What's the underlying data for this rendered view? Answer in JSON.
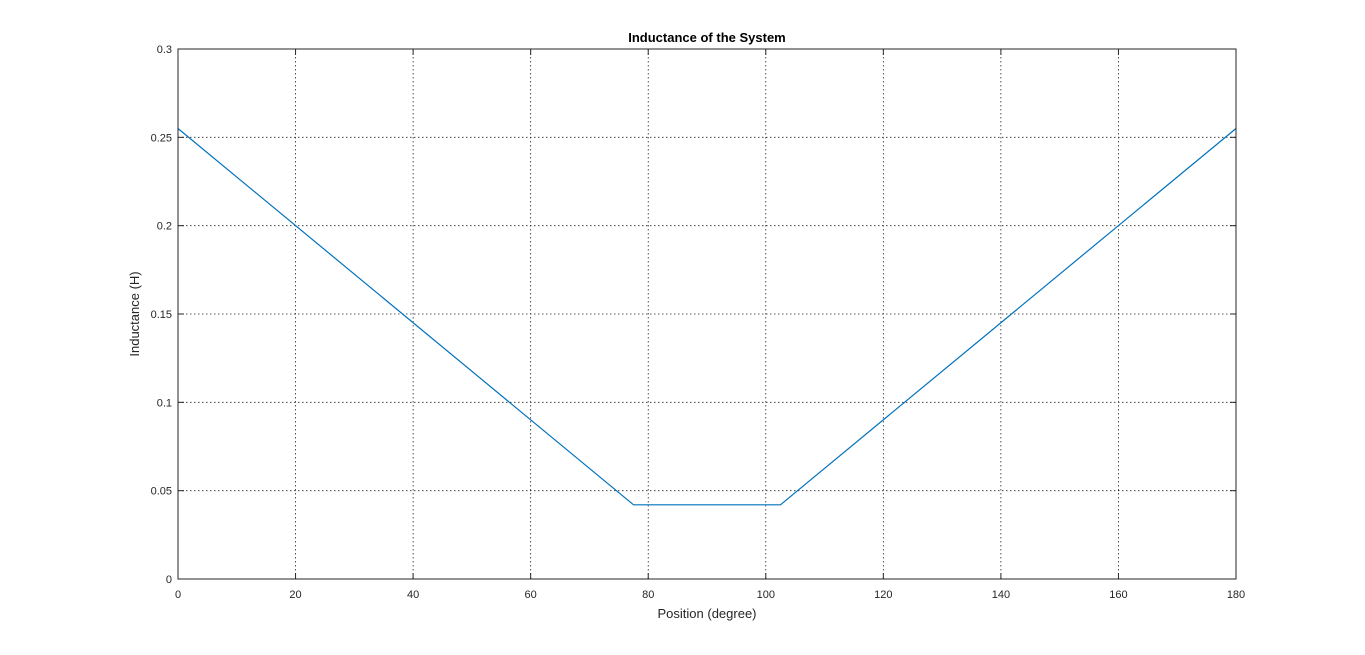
{
  "chart_data": {
    "type": "line",
    "title": "Inductance of the System",
    "xlabel": "Position (degree)",
    "ylabel": "Inductance (H)",
    "xlim": [
      0,
      180
    ],
    "ylim": [
      0,
      0.3
    ],
    "xticks": [
      0,
      20,
      40,
      60,
      80,
      100,
      120,
      140,
      160,
      180
    ],
    "yticks": [
      0,
      0.05,
      0.1,
      0.15,
      0.2,
      0.25,
      0.3
    ],
    "xtick_labels": [
      "0",
      "20",
      "40",
      "60",
      "80",
      "100",
      "120",
      "140",
      "160",
      "180"
    ],
    "ytick_labels": [
      "0",
      "0.05",
      "0.1",
      "0.15",
      "0.2",
      "0.25",
      "0.3"
    ],
    "grid": true,
    "series": [
      {
        "color": "#0072bd",
        "x": [
          0,
          77.5,
          102.5,
          180
        ],
        "y": [
          0.255,
          0.042,
          0.042,
          0.255
        ]
      }
    ]
  }
}
